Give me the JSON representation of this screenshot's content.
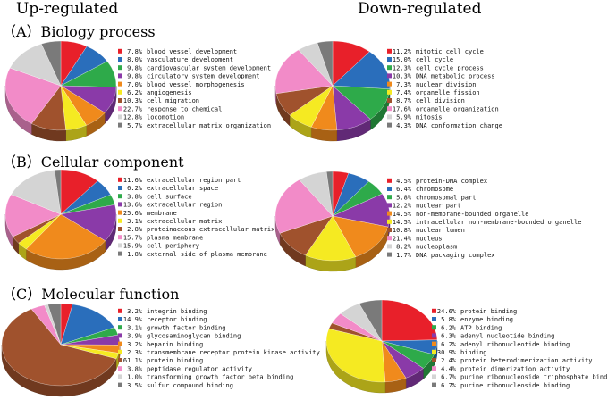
{
  "headers": {
    "up": "Up-regulated",
    "down": "Down-regulated"
  },
  "sections": [
    {
      "label": "（A）Biology process"
    },
    {
      "label": "（B）Cellular component"
    },
    {
      "label": "（C）Molecular function"
    }
  ],
  "chart_data": [
    {
      "type": "pie",
      "section": "A",
      "group": "Up-regulated",
      "categories": [
        "blood vessel development",
        "vasculature development",
        "cardiovascular system development",
        "circulatory system development",
        "blood vessel morphogenesis",
        "angiogenesis",
        "cell migration",
        "response to chemical",
        "locomotion",
        "extracellular matrix organization"
      ],
      "values": [
        7.8,
        8.0,
        9.8,
        9.8,
        7.0,
        6.2,
        10.3,
        22.7,
        12.8,
        5.7
      ],
      "labels": [
        "7.8%",
        "8.0%",
        "9.8%",
        "9.8%",
        "7.0%",
        "6.2%",
        "10.3%",
        "22.7%",
        "12.8%",
        "5.7%"
      ],
      "colors": [
        "#e8202a",
        "#2a6ebb",
        "#2eaa4a",
        "#8a3aa8",
        "#f08a1c",
        "#f5ea22",
        "#a0522d",
        "#f28bc8",
        "#d4d4d4",
        "#7a7a7a"
      ]
    },
    {
      "type": "pie",
      "section": "A",
      "group": "Down-regulated",
      "categories": [
        "mitotic cell cycle",
        "cell cycle",
        "cell cycle process",
        "DNA metabolic process",
        "nuclear division",
        "organelle fission",
        "cell division",
        "organelle organization",
        "mitosis",
        "DNA conformation change"
      ],
      "values": [
        11.2,
        15.0,
        12.3,
        10.3,
        7.3,
        7.4,
        8.7,
        17.6,
        5.9,
        4.3
      ],
      "labels": [
        "11.2%",
        "15.0%",
        "12.3%",
        "10.3%",
        "7.3%",
        "7.4%",
        "8.7%",
        "17.6%",
        "5.9%",
        "4.3%"
      ],
      "colors": [
        "#e8202a",
        "#2a6ebb",
        "#2eaa4a",
        "#8a3aa8",
        "#f08a1c",
        "#f5ea22",
        "#a0522d",
        "#f28bc8",
        "#d4d4d4",
        "#7a7a7a"
      ]
    },
    {
      "type": "pie",
      "section": "B",
      "group": "Up-regulated",
      "categories": [
        "extracellular region part",
        "extracellular space",
        "cell surface",
        "extracellular region",
        "membrane",
        "extracellular matrix",
        "proteinaceous extracellular matrix",
        "plasma membrane",
        "cell periphery",
        "external side of plasma membrane"
      ],
      "values": [
        11.6,
        6.2,
        3.8,
        13.6,
        25.6,
        3.1,
        2.8,
        15.7,
        15.9,
        1.8
      ],
      "labels": [
        "11.6%",
        "6.2%",
        "3.8%",
        "13.6%",
        "25.6%",
        "3.1%",
        "2.8%",
        "15.7%",
        "15.9%",
        "1.8%"
      ],
      "colors": [
        "#e8202a",
        "#2a6ebb",
        "#2eaa4a",
        "#8a3aa8",
        "#f08a1c",
        "#f5ea22",
        "#a0522d",
        "#f28bc8",
        "#d4d4d4",
        "#7a7a7a"
      ]
    },
    {
      "type": "pie",
      "section": "B",
      "group": "Down-regulated",
      "categories": [
        "protein-DNA complex",
        "chromosome",
        "chromosomal part",
        "nuclear part",
        "non-membrane-bounded organelle",
        "intracellular non-membrane-bounded organelle",
        "nuclear lumen",
        "nucleus",
        "nucleoplasm",
        "DNA packaging complex"
      ],
      "values": [
        4.5,
        6.4,
        5.8,
        12.2,
        14.5,
        14.5,
        10.8,
        21.4,
        8.2,
        1.7
      ],
      "labels": [
        "4.5%",
        "6.4%",
        "5.8%",
        "12.2%",
        "14.5%",
        "14.5%",
        "10.8%",
        "21.4%",
        "8.2%",
        "1.7%"
      ],
      "colors": [
        "#e8202a",
        "#2a6ebb",
        "#2eaa4a",
        "#8a3aa8",
        "#f08a1c",
        "#f5ea22",
        "#a0522d",
        "#f28bc8",
        "#d4d4d4",
        "#7a7a7a"
      ]
    },
    {
      "type": "pie",
      "section": "C",
      "group": "Up-regulated",
      "categories": [
        "integrin binding",
        "receptor binding",
        "growth factor binding",
        "glycosaminoglycan binding",
        "heparin binding",
        "transmembrane receptor protein kinase activity",
        "protein binding",
        "peptidase regulator activity",
        "transforming growth factor beta binding",
        "sulfur compound binding"
      ],
      "values": [
        3.2,
        14.9,
        3.1,
        3.9,
        3.2,
        2.3,
        61.1,
        3.8,
        1.0,
        3.5
      ],
      "labels": [
        "3.2%",
        "14.9%",
        "3.1%",
        "3.9%",
        "3.2%",
        "2.3%",
        "61.1%",
        "3.8%",
        "1.0%",
        "3.5%"
      ],
      "colors": [
        "#e8202a",
        "#2a6ebb",
        "#2eaa4a",
        "#8a3aa8",
        "#f08a1c",
        "#f5ea22",
        "#a0522d",
        "#f28bc8",
        "#d4d4d4",
        "#7a7a7a"
      ]
    },
    {
      "type": "pie",
      "section": "C",
      "group": "Down-regulated",
      "categories": [
        "protein binding",
        "enzyme binding",
        "ATP binding",
        "adenyl nucleotide binding",
        "adenyl ribonucleotide binding",
        "binding",
        "protein heterodimerization activity",
        "protein dimerization activity",
        "purine ribonucleoside triphosphate binding",
        "purine ribonucleoside binding"
      ],
      "values": [
        24.6,
        5.8,
        6.2,
        6.3,
        6.2,
        30.9,
        2.4,
        4.4,
        6.7,
        6.7
      ],
      "labels": [
        "24.6%",
        "5.8%",
        "6.2%",
        "6.3%",
        "6.2%",
        "30.9%",
        "2.4%",
        "4.4%",
        "6.7%",
        "6.7%"
      ],
      "colors": [
        "#e8202a",
        "#2a6ebb",
        "#2eaa4a",
        "#8a3aa8",
        "#f08a1c",
        "#f5ea22",
        "#a0522d",
        "#f28bc8",
        "#d4d4d4",
        "#7a7a7a"
      ]
    }
  ]
}
